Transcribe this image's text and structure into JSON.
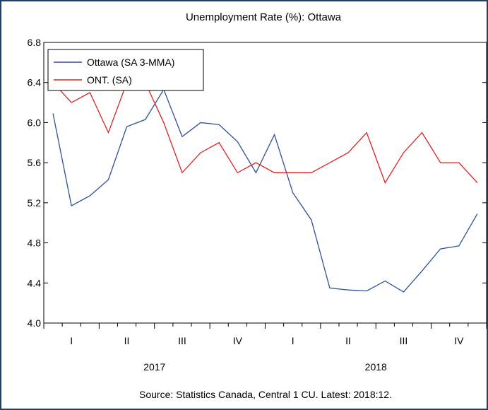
{
  "chart_data": {
    "type": "line",
    "title": "Unemployment Rate (%): Ottawa",
    "xlabel": "",
    "ylabel": "",
    "ylim": [
      4.0,
      6.8
    ],
    "yticks": [
      "4.0",
      "4.4",
      "4.8",
      "5.2",
      "5.6",
      "6.0",
      "6.4",
      "6.8"
    ],
    "quarter_labels": [
      "I",
      "II",
      "III",
      "IV",
      "I",
      "II",
      "III",
      "IV"
    ],
    "year_labels": [
      "2017",
      "2018"
    ],
    "x": [
      "2017:01",
      "2017:02",
      "2017:03",
      "2017:04",
      "2017:05",
      "2017:06",
      "2017:07",
      "2017:08",
      "2017:09",
      "2017:10",
      "2017:11",
      "2017:12",
      "2018:01",
      "2018:02",
      "2018:03",
      "2018:04",
      "2018:05",
      "2018:06",
      "2018:07",
      "2018:08",
      "2018:09",
      "2018:10",
      "2018:11",
      "2018:12"
    ],
    "series": [
      {
        "name": "Ottawa (SA 3-MMA)",
        "color": "#2e4f9a",
        "values": [
          6.09,
          5.17,
          5.27,
          5.43,
          5.96,
          6.03,
          6.33,
          5.86,
          6.0,
          5.98,
          5.81,
          5.5,
          5.88,
          5.3,
          5.03,
          4.35,
          4.33,
          4.32,
          4.42,
          4.31,
          4.52,
          4.74,
          4.77,
          5.09
        ]
      },
      {
        "name": "ONT. (SA)",
        "color": "#e02020",
        "values": [
          6.4,
          6.2,
          6.3,
          5.9,
          6.4,
          6.4,
          6.0,
          5.5,
          5.7,
          5.8,
          5.5,
          5.6,
          5.5,
          5.5,
          5.5,
          5.6,
          5.7,
          5.9,
          5.4,
          5.7,
          5.9,
          5.6,
          5.6,
          5.4
        ]
      }
    ],
    "legend_position": "top-left",
    "grid": false,
    "source": "Source: Statistics Canada, Central 1 CU. Latest: 2018:12."
  }
}
